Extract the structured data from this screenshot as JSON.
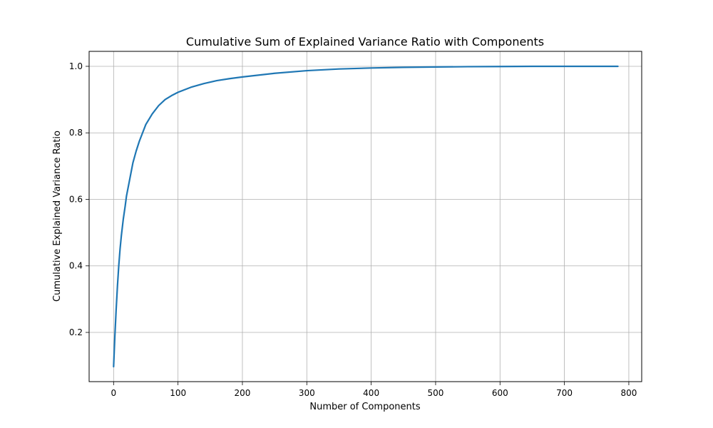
{
  "chart_data": {
    "type": "line",
    "title": "Cumulative Sum of Explained Variance Ratio with Components",
    "xlabel": "Number of Components",
    "ylabel": "Cumulative Explained Variance Ratio",
    "xlim": [
      -38,
      820
    ],
    "ylim": [
      0.052,
      1.045
    ],
    "xticks": [
      0,
      100,
      200,
      300,
      400,
      500,
      600,
      700,
      800
    ],
    "yticks": [
      0.2,
      0.4,
      0.6,
      0.8,
      1.0
    ],
    "ytick_labels": [
      "0.2",
      "0.4",
      "0.6",
      "0.8",
      "1.0"
    ],
    "grid": true,
    "line_color": "#1f77b4",
    "series": [
      {
        "x": [
          0,
          2,
          4,
          6,
          8,
          10,
          12,
          15,
          18,
          20,
          25,
          30,
          35,
          40,
          45,
          50,
          60,
          70,
          80,
          90,
          100,
          120,
          140,
          160,
          180,
          200,
          250,
          300,
          350,
          400,
          450,
          500,
          550,
          600,
          650,
          700,
          750,
          783
        ],
        "y": [
          0.097,
          0.19,
          0.27,
          0.34,
          0.4,
          0.45,
          0.49,
          0.54,
          0.58,
          0.61,
          0.66,
          0.71,
          0.745,
          0.775,
          0.8,
          0.825,
          0.857,
          0.882,
          0.9,
          0.912,
          0.922,
          0.937,
          0.948,
          0.957,
          0.963,
          0.968,
          0.979,
          0.987,
          0.992,
          0.995,
          0.997,
          0.998,
          0.999,
          0.9995,
          1.0,
          1.0,
          1.0,
          1.0
        ]
      }
    ]
  }
}
